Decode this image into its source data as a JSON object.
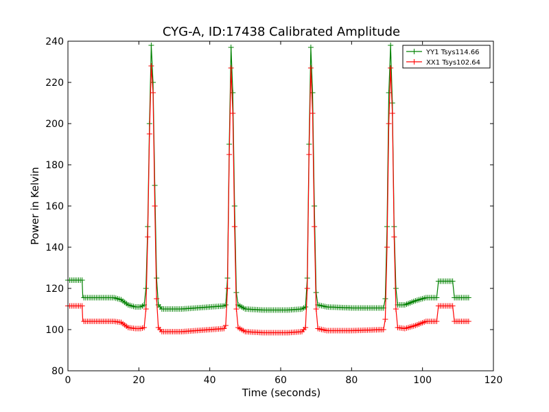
{
  "chart_data": {
    "type": "line",
    "title": "CYG-A, ID:17438 Calibrated Amplitude",
    "xlabel": "Time (seconds)",
    "ylabel": "Power in Kelvin",
    "xlim": [
      0,
      120
    ],
    "ylim": [
      80,
      240
    ],
    "xticks": [
      0,
      20,
      40,
      60,
      80,
      100,
      120
    ],
    "yticks": [
      80,
      100,
      120,
      140,
      160,
      180,
      200,
      220,
      240
    ],
    "grid": false,
    "legend_position": "top-right",
    "marker": "+",
    "series": [
      {
        "name": "YY1 Tsys114.66",
        "color": "#008000",
        "points": [
          [
            0,
            124
          ],
          [
            4,
            124
          ],
          [
            4.2,
            115.5
          ],
          [
            13,
            115.5
          ],
          [
            15,
            114.5
          ],
          [
            17,
            112
          ],
          [
            19,
            111
          ],
          [
            20.5,
            111
          ],
          [
            21.5,
            112
          ],
          [
            22,
            120
          ],
          [
            22.5,
            150
          ],
          [
            23,
            200
          ],
          [
            23.5,
            238
          ],
          [
            24,
            220
          ],
          [
            24.5,
            170
          ],
          [
            25,
            125
          ],
          [
            25.5,
            112
          ],
          [
            26.5,
            110
          ],
          [
            32,
            110
          ],
          [
            40,
            111
          ],
          [
            44,
            111.5
          ],
          [
            44.5,
            112
          ],
          [
            45,
            125
          ],
          [
            45.5,
            190
          ],
          [
            46,
            237
          ],
          [
            46.5,
            215
          ],
          [
            47,
            160
          ],
          [
            47.5,
            118
          ],
          [
            48,
            112
          ],
          [
            50,
            110
          ],
          [
            55,
            109.5
          ],
          [
            62,
            109.5
          ],
          [
            66,
            110
          ],
          [
            67,
            111
          ],
          [
            67.5,
            125
          ],
          [
            68,
            190
          ],
          [
            68.5,
            237
          ],
          [
            69,
            215
          ],
          [
            69.5,
            160
          ],
          [
            70,
            118
          ],
          [
            70.5,
            112
          ],
          [
            73,
            111
          ],
          [
            80,
            110.5
          ],
          [
            89,
            110.5
          ],
          [
            89.5,
            115
          ],
          [
            90,
            150
          ],
          [
            90.5,
            215
          ],
          [
            91,
            238
          ],
          [
            91.5,
            210
          ],
          [
            92,
            150
          ],
          [
            92.5,
            120
          ],
          [
            93,
            112
          ],
          [
            95,
            112
          ],
          [
            98,
            114
          ],
          [
            101,
            115.5
          ],
          [
            104,
            115.5
          ],
          [
            104.5,
            123.5
          ],
          [
            108.5,
            123.5
          ],
          [
            109,
            115.5
          ],
          [
            113,
            115.5
          ]
        ]
      },
      {
        "name": "XX1 Tsys102.64",
        "color": "#ff0000",
        "points": [
          [
            0,
            111.5
          ],
          [
            4,
            111.5
          ],
          [
            4.2,
            104
          ],
          [
            13,
            104
          ],
          [
            15,
            103.5
          ],
          [
            17,
            101
          ],
          [
            19,
            100.5
          ],
          [
            20.5,
            100.5
          ],
          [
            21.5,
            101
          ],
          [
            22,
            110
          ],
          [
            22.5,
            145
          ],
          [
            23,
            195
          ],
          [
            23.5,
            228
          ],
          [
            24,
            215
          ],
          [
            24.5,
            160
          ],
          [
            25,
            115
          ],
          [
            25.5,
            101
          ],
          [
            26.5,
            99
          ],
          [
            32,
            99
          ],
          [
            40,
            100
          ],
          [
            44,
            100.5
          ],
          [
            44.5,
            102
          ],
          [
            45,
            120
          ],
          [
            45.5,
            185
          ],
          [
            46,
            227
          ],
          [
            46.5,
            205
          ],
          [
            47,
            150
          ],
          [
            47.5,
            110
          ],
          [
            48,
            101
          ],
          [
            50,
            99
          ],
          [
            55,
            98.5
          ],
          [
            62,
            98.5
          ],
          [
            66,
            99
          ],
          [
            67,
            101
          ],
          [
            67.5,
            120
          ],
          [
            68,
            185
          ],
          [
            68.5,
            227
          ],
          [
            69,
            205
          ],
          [
            69.5,
            150
          ],
          [
            70,
            110
          ],
          [
            70.5,
            100.5
          ],
          [
            73,
            99.5
          ],
          [
            80,
            99.5
          ],
          [
            89,
            100
          ],
          [
            89.5,
            105
          ],
          [
            90,
            140
          ],
          [
            90.5,
            200
          ],
          [
            91,
            227
          ],
          [
            91.5,
            205
          ],
          [
            92,
            145
          ],
          [
            92.5,
            110
          ],
          [
            93,
            101
          ],
          [
            95,
            100.5
          ],
          [
            98,
            102
          ],
          [
            101,
            104
          ],
          [
            104,
            104
          ],
          [
            104.5,
            111.5
          ],
          [
            108.5,
            111.5
          ],
          [
            109,
            104
          ],
          [
            113,
            104
          ]
        ]
      }
    ]
  }
}
